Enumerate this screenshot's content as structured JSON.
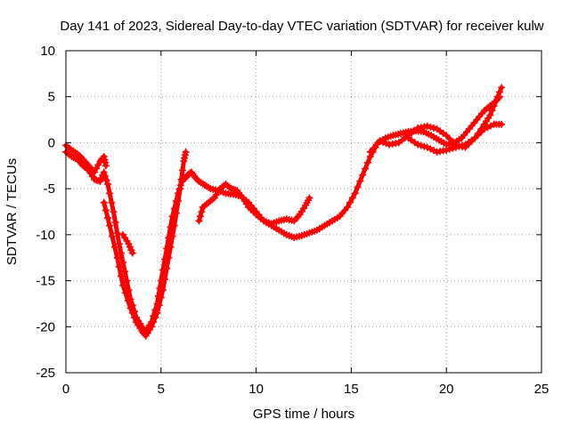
{
  "chart_data": {
    "type": "scatter",
    "title": "Day 141 of 2023, Sidereal Day-to-day VTEC variation (SDTVAR) for receiver kulw",
    "xlabel": "GPS time / hours",
    "ylabel": "SDTVAR / TECUs",
    "xlim": [
      0,
      25
    ],
    "ylim": [
      -25,
      10
    ],
    "xticks": [
      0,
      5,
      10,
      15,
      20,
      25
    ],
    "yticks": [
      -25,
      -20,
      -15,
      -10,
      -5,
      0,
      5,
      10
    ],
    "grid": true,
    "marker": "+",
    "series": [
      {
        "name": "main",
        "color": "#ff0000",
        "x": [
          0.0,
          0.3,
          0.6,
          0.9,
          1.2,
          1.5,
          1.8,
          2.0,
          2.2,
          2.5,
          2.8,
          3.1,
          3.4,
          3.7,
          4.0,
          4.2,
          4.5,
          4.8,
          5.0,
          5.3,
          5.6,
          5.9,
          6.1,
          6.3,
          6.4,
          6.6,
          6.8,
          7.0,
          7.3,
          7.6,
          8.0,
          8.4,
          8.8,
          9.2,
          9.6,
          10.0,
          10.4,
          10.8,
          11.2,
          11.6,
          12.0,
          12.4,
          12.8,
          13.2,
          13.6,
          14.0,
          14.4,
          14.8,
          15.2,
          15.6,
          16.0,
          16.4,
          16.8,
          17.2,
          17.6,
          18.0,
          18.4,
          18.8,
          19.2,
          19.6,
          20.0,
          20.4,
          20.8,
          21.2,
          21.6,
          22.0,
          22.3,
          22.6,
          22.8
        ],
        "y": [
          -1.0,
          -1.5,
          -1.8,
          -2.5,
          -3.0,
          -4.0,
          -4.2,
          -3.2,
          -4.5,
          -7.5,
          -11.0,
          -14.0,
          -17.0,
          -19.0,
          -20.0,
          -20.5,
          -19.5,
          -17.5,
          -15.0,
          -11.5,
          -8.0,
          -5.5,
          -4.2,
          -3.8,
          -3.5,
          -3.2,
          -3.8,
          -4.2,
          -4.6,
          -5.0,
          -5.2,
          -5.5,
          -5.6,
          -5.8,
          -6.5,
          -7.5,
          -8.5,
          -9.0,
          -9.5,
          -10.0,
          -10.3,
          -10.1,
          -9.8,
          -9.5,
          -9.0,
          -8.5,
          -8.0,
          -7.0,
          -5.5,
          -3.5,
          -1.5,
          0.0,
          0.5,
          0.8,
          1.0,
          1.2,
          1.3,
          1.2,
          0.8,
          0.3,
          -0.2,
          0.0,
          0.5,
          1.5,
          2.5,
          3.5,
          4.0,
          4.5,
          5.0
        ]
      },
      {
        "name": "upper-branch",
        "color": "#ff0000",
        "x": [
          0.0,
          0.3,
          0.6,
          0.9,
          1.2,
          1.5,
          1.8,
          2.0,
          2.1
        ],
        "y": [
          -0.3,
          -0.8,
          -1.2,
          -1.8,
          -2.5,
          -3.2,
          -2.0,
          -1.5,
          -2.5
        ]
      },
      {
        "name": "lower-branch",
        "color": "#ff0000",
        "x": [
          2.0,
          2.3,
          2.7,
          3.0,
          3.4,
          3.7,
          4.0,
          4.2,
          4.5,
          4.8,
          5.1,
          5.4,
          5.7,
          6.0,
          6.2,
          6.3
        ],
        "y": [
          -6.5,
          -9.0,
          -12.5,
          -15.5,
          -18.0,
          -19.5,
          -20.5,
          -21.0,
          -20.0,
          -18.5,
          -16.0,
          -12.5,
          -9.0,
          -5.0,
          -2.0,
          -1.0
        ]
      },
      {
        "name": "short-segment-a",
        "color": "#ff0000",
        "x": [
          3.0,
          3.3,
          3.5
        ],
        "y": [
          -10.0,
          -11.0,
          -12.0
        ]
      },
      {
        "name": "mid-branch",
        "color": "#ff0000",
        "x": [
          7.0,
          7.2,
          7.5,
          7.8,
          8.1,
          8.4,
          8.7,
          9.0,
          9.3,
          9.6,
          10.0,
          10.4,
          10.8,
          11.2,
          11.6,
          12.0,
          12.3,
          12.6,
          12.8
        ],
        "y": [
          -8.5,
          -7.0,
          -6.5,
          -6.0,
          -5.0,
          -4.5,
          -5.0,
          -5.2,
          -6.0,
          -7.0,
          -7.8,
          -8.5,
          -8.8,
          -8.5,
          -8.3,
          -8.5,
          -7.8,
          -6.8,
          -6.0
        ]
      },
      {
        "name": "evening-branch",
        "color": "#ff0000",
        "x": [
          16.0,
          16.5,
          17.0,
          17.5,
          18.0,
          18.5,
          19.0,
          19.5,
          20.0,
          20.5,
          21.0,
          21.5,
          22.0,
          22.3,
          22.6,
          22.9
        ],
        "y": [
          -1.0,
          0.2,
          -0.2,
          0.0,
          0.8,
          1.6,
          1.8,
          1.5,
          0.8,
          -0.3,
          -0.5,
          0.5,
          2.0,
          3.0,
          4.5,
          6.0
        ]
      },
      {
        "name": "evening-lower",
        "color": "#ff0000",
        "x": [
          18.0,
          18.5,
          19.0,
          19.5,
          20.0,
          20.5,
          21.0,
          21.5,
          22.0,
          22.5,
          22.9
        ],
        "y": [
          0.5,
          -0.2,
          -0.5,
          -1.0,
          -0.8,
          -0.5,
          -0.2,
          0.5,
          1.5,
          2.0,
          2.0
        ]
      }
    ]
  }
}
